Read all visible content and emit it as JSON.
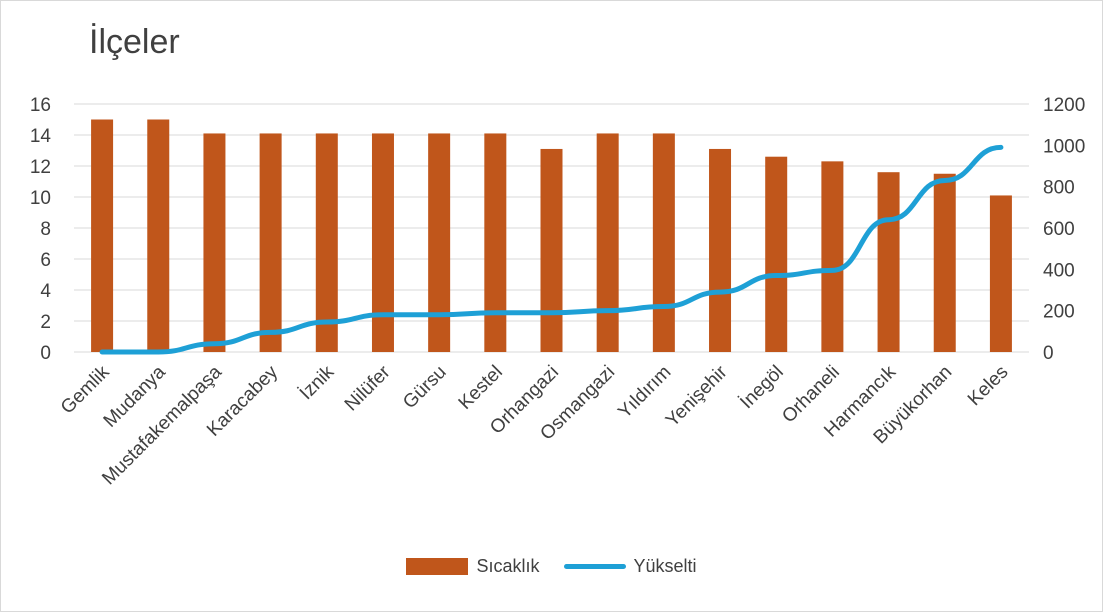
{
  "chart_data": {
    "type": "bar",
    "title": "İlçeler",
    "categories": [
      "Gemlik",
      "Mudanya",
      "Mustafakemalpaşa",
      "Karacabey",
      "İznik",
      "Nilüfer",
      "Gürsu",
      "Kestel",
      "Orhangazi",
      "Osmangazi",
      "Yıldırım",
      "Yenişehir",
      "İnegöl",
      "Orhaneli",
      "Harmancık",
      "Büyükorhan",
      "Keles"
    ],
    "series": [
      {
        "name": "Sıcaklık",
        "type": "bar",
        "axis": "left",
        "color": "#C0561B",
        "values": [
          15,
          15,
          14.1,
          14.1,
          14.1,
          14.1,
          14.1,
          14.1,
          13.1,
          14.1,
          14.1,
          13.1,
          12.6,
          12.3,
          11.6,
          11.5,
          10.1
        ]
      },
      {
        "name": "Yükselti",
        "type": "line",
        "axis": "right",
        "color": "#1EA0D6",
        "values": [
          0,
          0,
          40,
          95,
          145,
          180,
          180,
          190,
          190,
          200,
          220,
          290,
          370,
          395,
          640,
          830,
          990
        ]
      }
    ],
    "y_left": {
      "min": 0,
      "max": 16,
      "ticks": [
        0,
        2,
        4,
        6,
        8,
        10,
        12,
        14,
        16
      ]
    },
    "y_right": {
      "min": 0,
      "max": 1200,
      "ticks": [
        0,
        200,
        400,
        600,
        800,
        1000,
        1200
      ]
    },
    "grid": true,
    "legend_position": "bottom"
  }
}
